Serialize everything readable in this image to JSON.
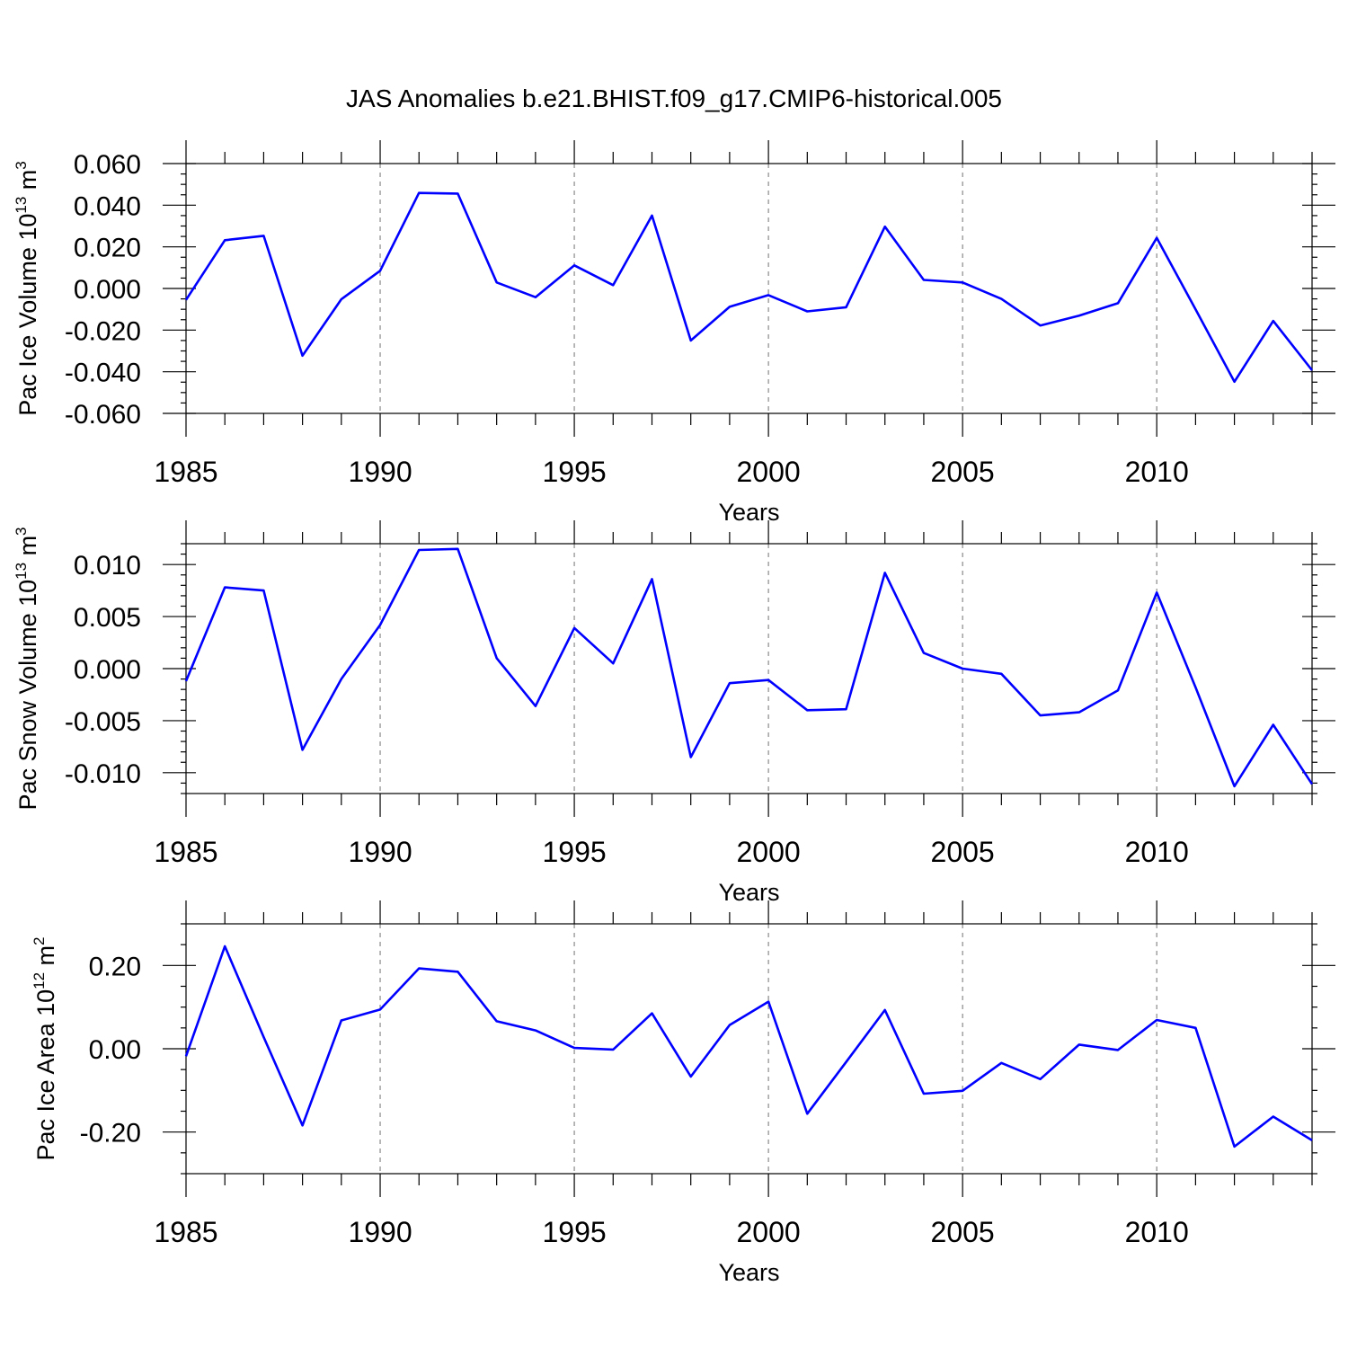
{
  "title": "JAS Anomalies b.e21.BHIST.f09_g17.CMIP6-historical.005",
  "colors": {
    "series": "#0000ff",
    "grid": "#888888",
    "axes": "#000000"
  },
  "chart_data": [
    {
      "type": "line",
      "ylabel": {
        "text": "Pac Ice Volume 10",
        "sup": "13",
        "unit": " m",
        "unit_sup": "3"
      },
      "xlabel": "Years",
      "xlim": [
        1985,
        2014
      ],
      "ylim": [
        -0.06,
        0.06
      ],
      "x_major_ticks": [
        1985,
        1990,
        1995,
        2000,
        2005,
        2010
      ],
      "x_tick_labels": [
        "1985",
        "1990",
        "1995",
        "2000",
        "2005",
        "2010"
      ],
      "y_major_ticks": [
        0.06,
        0.04,
        0.02,
        0.0,
        -0.02,
        -0.04,
        -0.06
      ],
      "y_tick_labels": [
        "0.060",
        "0.040",
        "0.020",
        "0.000",
        "-0.020",
        "-0.040",
        "-0.060"
      ],
      "y_minor_step": 0.005,
      "grid": {
        "vertical_dashed_at": [
          1990,
          1995,
          2000,
          2005,
          2010
        ]
      },
      "x": [
        1985,
        1986,
        1987,
        1988,
        1989,
        1990,
        1991,
        1992,
        1993,
        1994,
        1995,
        1996,
        1997,
        1998,
        1999,
        2000,
        2001,
        2002,
        2003,
        2004,
        2005,
        2006,
        2007,
        2008,
        2009,
        2010,
        2011,
        2012,
        2013,
        2014
      ],
      "values": [
        -0.0055,
        0.0232,
        0.0253,
        -0.0323,
        -0.0052,
        0.0085,
        0.0459,
        0.0456,
        0.0029,
        -0.0042,
        0.0111,
        0.0016,
        0.035,
        -0.025,
        -0.0088,
        -0.0032,
        -0.011,
        -0.009,
        0.0297,
        0.0041,
        0.0029,
        -0.005,
        -0.0178,
        -0.0131,
        -0.0071,
        0.0243,
        -0.01,
        -0.0448,
        -0.0156,
        -0.0393
      ]
    },
    {
      "type": "line",
      "ylabel": {
        "text": "Pac Snow Volume 10",
        "sup": "13",
        "unit": " m",
        "unit_sup": "3"
      },
      "xlabel": "Years",
      "xlim": [
        1985,
        2014
      ],
      "ylim": [
        -0.012,
        0.012
      ],
      "x_major_ticks": [
        1985,
        1990,
        1995,
        2000,
        2005,
        2010
      ],
      "x_tick_labels": [
        "1985",
        "1990",
        "1995",
        "2000",
        "2005",
        "2010"
      ],
      "y_major_ticks": [
        0.01,
        0.005,
        0.0,
        -0.005,
        -0.01
      ],
      "y_tick_labels": [
        "0.010",
        "0.005",
        "0.000",
        "-0.005",
        "-0.010"
      ],
      "y_minor_step": 0.001,
      "grid": {
        "vertical_dashed_at": [
          1990,
          1995,
          2000,
          2005,
          2010
        ]
      },
      "x": [
        1985,
        1986,
        1987,
        1988,
        1989,
        1990,
        1991,
        1992,
        1993,
        1994,
        1995,
        1996,
        1997,
        1998,
        1999,
        2000,
        2001,
        2002,
        2003,
        2004,
        2005,
        2006,
        2007,
        2008,
        2009,
        2010,
        2011,
        2012,
        2013,
        2014
      ],
      "values": [
        -0.0012,
        0.0078,
        0.0075,
        -0.0078,
        -0.001,
        0.0042,
        0.0114,
        0.0115,
        0.001,
        -0.0036,
        0.0039,
        0.0005,
        0.0086,
        -0.0085,
        -0.0014,
        -0.0011,
        -0.004,
        -0.0039,
        0.0092,
        0.0015,
        0.0,
        -0.0005,
        -0.0045,
        -0.0042,
        -0.0021,
        0.0073,
        -0.0018,
        -0.0113,
        -0.0054,
        -0.0111
      ]
    },
    {
      "type": "line",
      "ylabel": {
        "text": "Pac Ice Area 10",
        "sup": "12",
        "unit": " m",
        "unit_sup": "2"
      },
      "xlabel": "Years",
      "xlim": [
        1985,
        2014
      ],
      "ylim": [
        -0.3,
        0.3
      ],
      "x_major_ticks": [
        1985,
        1990,
        1995,
        2000,
        2005,
        2010
      ],
      "x_tick_labels": [
        "1985",
        "1990",
        "1995",
        "2000",
        "2005",
        "2010"
      ],
      "y_major_ticks": [
        0.2,
        0.0,
        -0.2
      ],
      "y_tick_labels": [
        "0.20",
        "0.00",
        "-0.20"
      ],
      "y_minor_step": 0.05,
      "grid": {
        "vertical_dashed_at": [
          1990,
          1995,
          2000,
          2005,
          2010
        ]
      },
      "x": [
        1985,
        1986,
        1987,
        1988,
        1989,
        1990,
        1991,
        1992,
        1993,
        1994,
        1995,
        1996,
        1997,
        1998,
        1999,
        2000,
        2001,
        2002,
        2003,
        2004,
        2005,
        2006,
        2007,
        2008,
        2009,
        2010,
        2011,
        2012,
        2013,
        2014
      ],
      "values": [
        -0.018,
        0.246,
        0.028,
        -0.184,
        0.068,
        0.094,
        0.193,
        0.185,
        0.066,
        0.044,
        0.002,
        -0.002,
        0.085,
        -0.067,
        0.057,
        0.113,
        -0.156,
        -0.032,
        0.093,
        -0.108,
        -0.101,
        -0.034,
        -0.073,
        0.01,
        -0.003,
        0.069,
        0.05,
        -0.235,
        -0.163,
        -0.22
      ]
    }
  ]
}
